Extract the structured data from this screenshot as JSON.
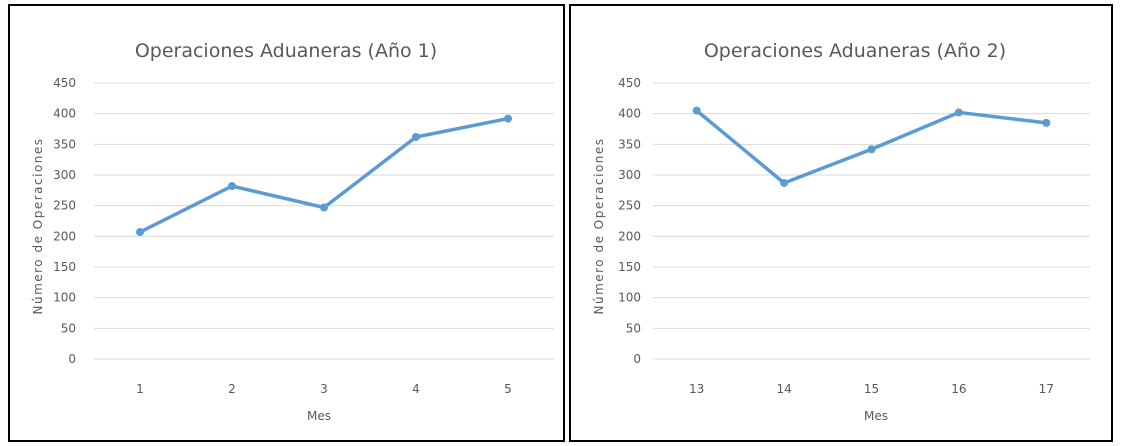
{
  "colors": {
    "line": "#5B9BD5",
    "grid": "#D9D9D9",
    "text": "#595959",
    "border": "#000000"
  },
  "chart_data": [
    {
      "type": "line",
      "title": "Operaciones Aduaneras (Año 1)",
      "xlabel": "Mes",
      "ylabel": "Número de Operaciones",
      "categories": [
        "1",
        "2",
        "3",
        "4",
        "5"
      ],
      "values": [
        207,
        282,
        247,
        362,
        392
      ],
      "ylim": [
        0,
        450
      ],
      "yticks": [
        "0",
        "50",
        "100",
        "150",
        "200",
        "250",
        "300",
        "350",
        "400",
        "450"
      ],
      "grid": true,
      "legend": "none"
    },
    {
      "type": "line",
      "title": "Operaciones Aduaneras (Año 2)",
      "xlabel": "Mes",
      "ylabel": "Número de Operaciones",
      "categories": [
        "13",
        "14",
        "15",
        "16",
        "17"
      ],
      "values": [
        405,
        287,
        342,
        402,
        385
      ],
      "ylim": [
        0,
        450
      ],
      "yticks": [
        "0",
        "50",
        "100",
        "150",
        "200",
        "250",
        "300",
        "350",
        "400",
        "450"
      ],
      "grid": true,
      "legend": "none"
    }
  ]
}
